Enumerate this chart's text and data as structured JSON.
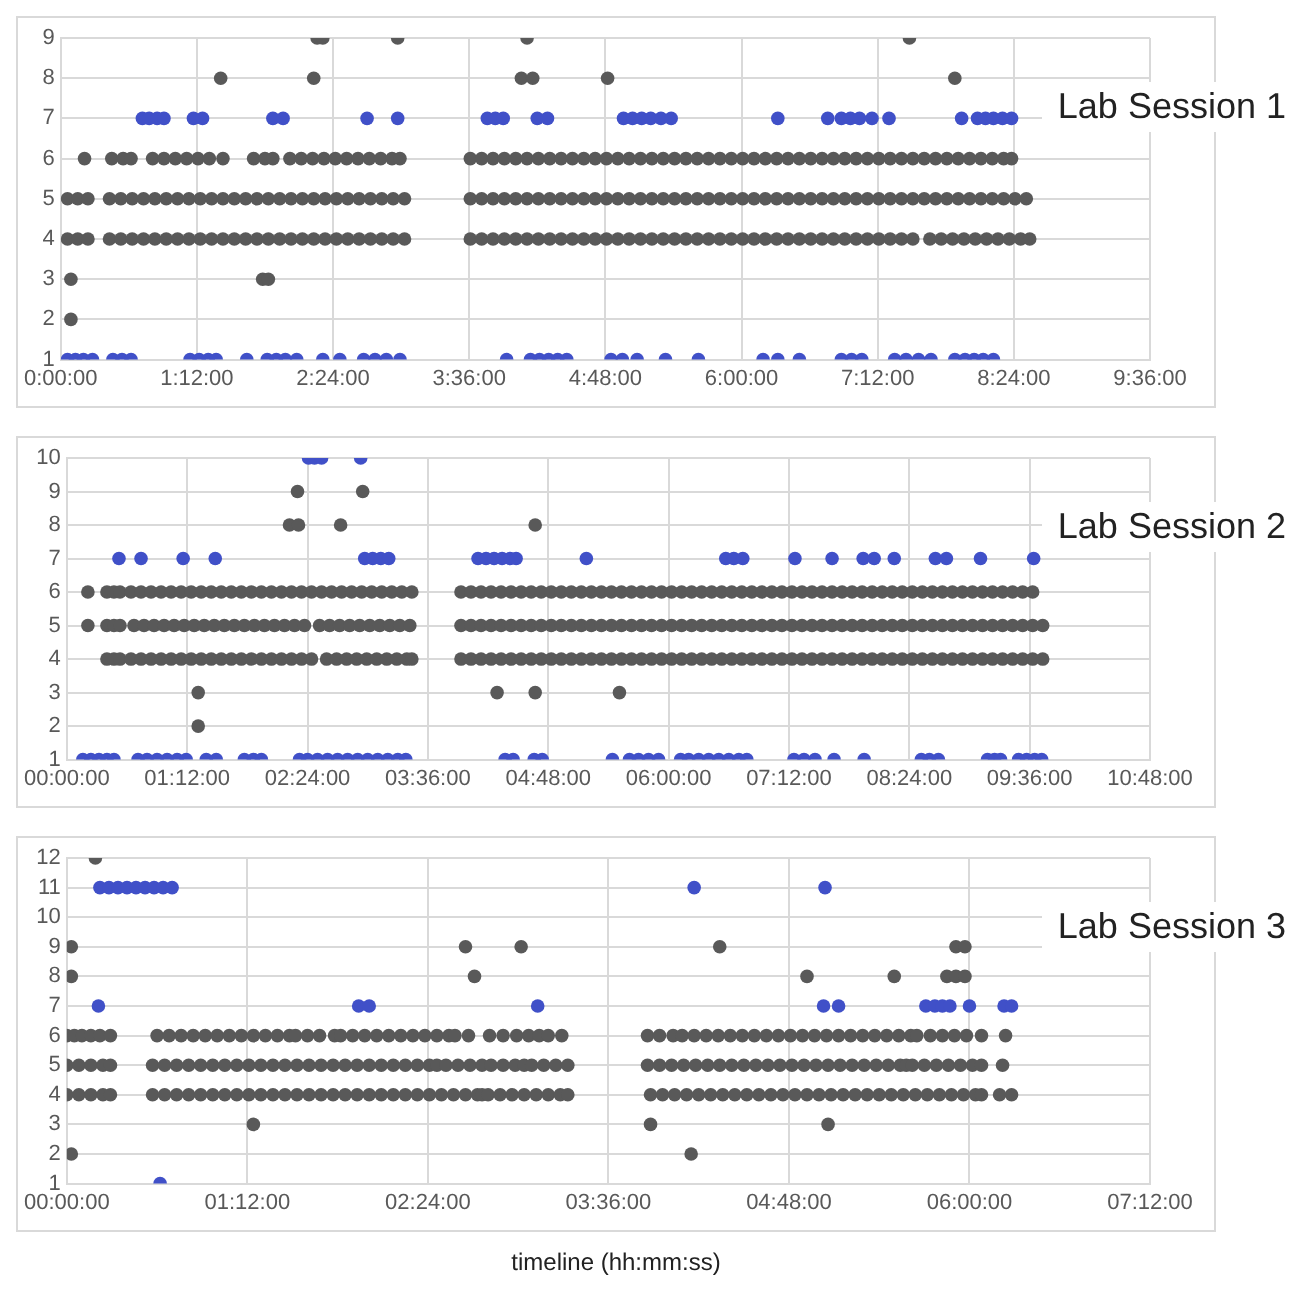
{
  "chart_data": [
    {
      "type": "scatter",
      "title": "Lab Session 1",
      "xlim": [
        0,
        9.6
      ],
      "ylim": [
        1,
        9
      ],
      "grid": true,
      "marker": "circle",
      "xticks": [
        {
          "value": 0,
          "label": "0:00:00"
        },
        {
          "value": 1.2,
          "label": "1:12:00"
        },
        {
          "value": 2.4,
          "label": "2:24:00"
        },
        {
          "value": 3.6,
          "label": "3:36:00"
        },
        {
          "value": 4.8,
          "label": "4:48:00"
        },
        {
          "value": 6,
          "label": "6:00:00"
        },
        {
          "value": 7.2,
          "label": "7:12:00"
        },
        {
          "value": 8.4,
          "label": "8:24:00"
        },
        {
          "value": 9.6,
          "label": "9:36:00"
        }
      ],
      "yticks": [
        1,
        2,
        3,
        4,
        5,
        6,
        7,
        8,
        9
      ],
      "series": [
        {
          "color": "#595959",
          "x": [
            0.06,
            0.15,
            0.24,
            0.43,
            0.53,
            0.63,
            0.73,
            0.83,
            0.93,
            1.03,
            1.13,
            1.23,
            1.33,
            1.43,
            1.53,
            1.63,
            1.73,
            1.83,
            1.93,
            2.03,
            2.13,
            2.23,
            2.33,
            2.43,
            2.53,
            2.63,
            2.73,
            2.83,
            2.93,
            3.03,
            3.61,
            3.71,
            3.81,
            3.91,
            4.01,
            4.11,
            4.21,
            4.31,
            4.41,
            4.51,
            4.61,
            4.71,
            4.81,
            4.91,
            5.01,
            5.11,
            5.21,
            5.31,
            5.41,
            5.51,
            5.61,
            5.71,
            5.81,
            5.91,
            6.01,
            6.11,
            6.21,
            6.31,
            6.41,
            6.51,
            6.61,
            6.71,
            6.81,
            6.91,
            7.01,
            7.11,
            7.21,
            7.31,
            7.41,
            7.51,
            7.66,
            7.76,
            7.86,
            7.96,
            8.06,
            8.16,
            8.26,
            8.36,
            8.46,
            8.54
          ],
          "values": [
            4,
            4,
            4,
            4,
            4,
            4,
            4,
            4,
            4,
            4,
            4,
            4,
            4,
            4,
            4,
            4,
            4,
            4,
            4,
            4,
            4,
            4,
            4,
            4,
            4,
            4,
            4,
            4,
            4,
            4,
            4,
            4,
            4,
            4,
            4,
            4,
            4,
            4,
            4,
            4,
            4,
            4,
            4,
            4,
            4,
            4,
            4,
            4,
            4,
            4,
            4,
            4,
            4,
            4,
            4,
            4,
            4,
            4,
            4,
            4,
            4,
            4,
            4,
            4,
            4,
            4,
            4,
            4,
            4,
            4,
            4,
            4,
            4,
            4,
            4,
            4,
            4,
            4,
            4,
            4
          ]
        },
        {
          "color": "#595959",
          "x": [
            0.06,
            0.15,
            0.24,
            0.43,
            0.53,
            0.63,
            0.73,
            0.83,
            0.93,
            1.03,
            1.13,
            1.23,
            1.33,
            1.43,
            1.53,
            1.63,
            1.73,
            1.83,
            1.93,
            2.03,
            2.13,
            2.23,
            2.33,
            2.43,
            2.53,
            2.63,
            2.73,
            2.83,
            2.93,
            3.03,
            3.61,
            3.71,
            3.81,
            3.91,
            4.01,
            4.11,
            4.21,
            4.31,
            4.41,
            4.51,
            4.61,
            4.71,
            4.81,
            4.91,
            5.01,
            5.11,
            5.21,
            5.31,
            5.41,
            5.51,
            5.61,
            5.71,
            5.81,
            5.91,
            6.01,
            6.11,
            6.21,
            6.31,
            6.41,
            6.51,
            6.61,
            6.71,
            6.81,
            6.91,
            7.01,
            7.11,
            7.21,
            7.31,
            7.41,
            7.51,
            7.61,
            7.71,
            7.81,
            7.91,
            8.01,
            8.11,
            8.21,
            8.31,
            8.41,
            8.51
          ],
          "values": [
            5,
            5,
            5,
            5,
            5,
            5,
            5,
            5,
            5,
            5,
            5,
            5,
            5,
            5,
            5,
            5,
            5,
            5,
            5,
            5,
            5,
            5,
            5,
            5,
            5,
            5,
            5,
            5,
            5,
            5,
            5,
            5,
            5,
            5,
            5,
            5,
            5,
            5,
            5,
            5,
            5,
            5,
            5,
            5,
            5,
            5,
            5,
            5,
            5,
            5,
            5,
            5,
            5,
            5,
            5,
            5,
            5,
            5,
            5,
            5,
            5,
            5,
            5,
            5,
            5,
            5,
            5,
            5,
            5,
            5,
            5,
            5,
            5,
            5,
            5,
            5,
            5,
            5,
            5,
            5
          ]
        },
        {
          "color": "#595959",
          "x": [
            0.21,
            0.45,
            0.55,
            0.62,
            0.81,
            0.91,
            1.01,
            1.11,
            1.21,
            1.31,
            1.43,
            1.7,
            1.8,
            1.87,
            2.02,
            2.12,
            2.22,
            2.32,
            2.42,
            2.52,
            2.62,
            2.72,
            2.82,
            2.92,
            2.99,
            3.61,
            3.71,
            3.81,
            3.91,
            4.01,
            4.11,
            4.21,
            4.31,
            4.41,
            4.51,
            4.61,
            4.71,
            4.81,
            4.91,
            5.01,
            5.11,
            5.21,
            5.31,
            5.41,
            5.51,
            5.61,
            5.71,
            5.81,
            5.91,
            6.01,
            6.11,
            6.21,
            6.31,
            6.41,
            6.51,
            6.61,
            6.71,
            6.81,
            6.91,
            7.01,
            7.11,
            7.21,
            7.31,
            7.41,
            7.51,
            7.61,
            7.71,
            7.81,
            7.91,
            8.01,
            8.11,
            8.21,
            8.31,
            8.38
          ],
          "values": [
            6,
            6,
            6,
            6,
            6,
            6,
            6,
            6,
            6,
            6,
            6,
            6,
            6,
            6,
            6,
            6,
            6,
            6,
            6,
            6,
            6,
            6,
            6,
            6,
            6,
            6,
            6,
            6,
            6,
            6,
            6,
            6,
            6,
            6,
            6,
            6,
            6,
            6,
            6,
            6,
            6,
            6,
            6,
            6,
            6,
            6,
            6,
            6,
            6,
            6,
            6,
            6,
            6,
            6,
            6,
            6,
            6,
            6,
            6,
            6,
            6,
            6,
            6,
            6,
            6,
            6,
            6,
            6,
            6,
            6,
            6,
            6,
            6,
            6
          ]
        },
        {
          "color": "#595959",
          "x": [
            0.09,
            0.09,
            1.78,
            1.83,
            1.41,
            2.23,
            4.06,
            4.16,
            4.82,
            7.88,
            2.26,
            2.31,
            2.97,
            4.11,
            7.48
          ],
          "values": [
            3,
            2,
            3,
            3,
            8,
            8,
            8,
            8,
            8,
            8,
            9,
            9,
            9,
            9,
            9
          ]
        },
        {
          "color": "#4050c8",
          "x": [
            0.72,
            0.78,
            0.85,
            0.91,
            1.17,
            1.25,
            1.87,
            1.96,
            2.7,
            2.97,
            3.76,
            3.83,
            3.9,
            4.2,
            4.29,
            4.96,
            5.04,
            5.12,
            5.2,
            5.29,
            5.38,
            6.32,
            6.76,
            6.88,
            6.96,
            7.04,
            7.15,
            7.3,
            7.94,
            8.08,
            8.15,
            8.22,
            8.3,
            8.38
          ],
          "values": [
            7,
            7,
            7,
            7,
            7,
            7,
            7,
            7,
            7,
            7,
            7,
            7,
            7,
            7,
            7,
            7,
            7,
            7,
            7,
            7,
            7,
            7,
            7,
            7,
            7,
            7,
            7,
            7,
            7,
            7,
            7,
            7,
            7,
            7
          ]
        },
        {
          "color": "#4050c8",
          "x": [
            0.06,
            0.13,
            0.2,
            0.28,
            0.46,
            0.54,
            0.62,
            1.14,
            1.22,
            1.3,
            1.37,
            1.64,
            1.82,
            1.9,
            1.98,
            2.08,
            2.31,
            2.46,
            2.67,
            2.77,
            2.87,
            2.99,
            3.93,
            4.14,
            4.22,
            4.3,
            4.38,
            4.46,
            4.85,
            4.95,
            5.08,
            5.33,
            5.62,
            6.19,
            6.32,
            6.51,
            6.88,
            6.97,
            7.06,
            7.35,
            7.45,
            7.56,
            7.67,
            7.88,
            7.97,
            8.05,
            8.13,
            8.22
          ],
          "values": [
            1,
            1,
            1,
            1,
            1,
            1,
            1,
            1,
            1,
            1,
            1,
            1,
            1,
            1,
            1,
            1,
            1,
            1,
            1,
            1,
            1,
            1,
            1,
            1,
            1,
            1,
            1,
            1,
            1,
            1,
            1,
            1,
            1,
            1,
            1,
            1,
            1,
            1,
            1,
            1,
            1,
            1,
            1,
            1,
            1,
            1,
            1,
            1
          ]
        }
      ]
    },
    {
      "type": "scatter",
      "title": "Lab Session 2",
      "xlim": [
        0,
        10.8
      ],
      "ylim": [
        1,
        10
      ],
      "grid": true,
      "marker": "circle",
      "xticks": [
        {
          "value": 0,
          "label": "00:00:00"
        },
        {
          "value": 1.2,
          "label": "01:12:00"
        },
        {
          "value": 2.4,
          "label": "02:24:00"
        },
        {
          "value": 3.6,
          "label": "03:36:00"
        },
        {
          "value": 4.8,
          "label": "04:48:00"
        },
        {
          "value": 6,
          "label": "06:00:00"
        },
        {
          "value": 7.2,
          "label": "07:12:00"
        },
        {
          "value": 8.4,
          "label": "08:24:00"
        },
        {
          "value": 9.6,
          "label": "09:36:00"
        },
        {
          "value": 10.8,
          "label": "10:48:00"
        }
      ],
      "yticks": [
        1,
        2,
        3,
        4,
        5,
        6,
        7,
        8,
        9,
        10
      ],
      "series": [
        {
          "color": "#595959",
          "x": [
            0.21,
            0.4,
            0.47,
            0.53,
            0.64,
            0.74,
            0.84,
            0.94,
            1.04,
            1.14,
            1.24,
            1.34,
            1.44,
            1.54,
            1.64,
            1.74,
            1.84,
            1.94,
            2.04,
            2.14,
            2.24,
            2.34,
            2.44,
            2.54,
            2.64,
            2.74,
            2.84,
            2.94,
            3.04,
            3.14,
            3.24,
            3.34,
            3.44,
            3.93,
            4.03,
            4.13,
            4.23,
            4.33,
            4.43,
            4.53,
            4.63,
            4.73,
            4.83,
            4.93,
            5.03,
            5.13,
            5.23,
            5.33,
            5.43,
            5.53,
            5.63,
            5.73,
            5.83,
            5.93,
            6.03,
            6.13,
            6.23,
            6.33,
            6.43,
            6.53,
            6.63,
            6.73,
            6.83,
            6.93,
            7.03,
            7.13,
            7.23,
            7.33,
            7.43,
            7.53,
            7.63,
            7.73,
            7.83,
            7.93,
            8.03,
            8.13,
            8.23,
            8.33,
            8.43,
            8.53,
            8.63,
            8.73,
            8.83,
            8.93,
            9.03,
            9.13,
            9.23,
            9.33,
            9.43,
            9.53,
            9.63
          ],
          "values": [
            6,
            6,
            6,
            6,
            6,
            6,
            6,
            6,
            6,
            6,
            6,
            6,
            6,
            6,
            6,
            6,
            6,
            6,
            6,
            6,
            6,
            6,
            6,
            6,
            6,
            6,
            6,
            6,
            6,
            6,
            6,
            6,
            6,
            6,
            6,
            6,
            6,
            6,
            6,
            6,
            6,
            6,
            6,
            6,
            6,
            6,
            6,
            6,
            6,
            6,
            6,
            6,
            6,
            6,
            6,
            6,
            6,
            6,
            6,
            6,
            6,
            6,
            6,
            6,
            6,
            6,
            6,
            6,
            6,
            6,
            6,
            6,
            6,
            6,
            6,
            6,
            6,
            6,
            6,
            6,
            6,
            6,
            6,
            6,
            6,
            6,
            6,
            6,
            6,
            6,
            6
          ]
        },
        {
          "color": "#595959",
          "x": [
            0.21,
            0.4,
            0.47,
            0.53,
            0.67,
            0.77,
            0.87,
            0.97,
            1.07,
            1.17,
            1.27,
            1.37,
            1.47,
            1.57,
            1.67,
            1.77,
            1.87,
            1.97,
            2.07,
            2.17,
            2.27,
            2.37,
            2.52,
            2.62,
            2.72,
            2.82,
            2.92,
            3.02,
            3.12,
            3.22,
            3.32,
            3.42,
            3.93,
            4.03,
            4.13,
            4.23,
            4.33,
            4.43,
            4.53,
            4.63,
            4.73,
            4.83,
            4.93,
            5.03,
            5.13,
            5.23,
            5.33,
            5.43,
            5.53,
            5.63,
            5.73,
            5.83,
            5.93,
            6.03,
            6.13,
            6.23,
            6.33,
            6.43,
            6.53,
            6.63,
            6.73,
            6.83,
            6.93,
            7.03,
            7.13,
            7.23,
            7.33,
            7.43,
            7.53,
            7.63,
            7.73,
            7.83,
            7.93,
            8.03,
            8.13,
            8.23,
            8.33,
            8.43,
            8.53,
            8.63,
            8.73,
            8.83,
            8.93,
            9.03,
            9.13,
            9.23,
            9.33,
            9.43,
            9.53,
            9.63,
            9.73
          ],
          "values": [
            5,
            5,
            5,
            5,
            5,
            5,
            5,
            5,
            5,
            5,
            5,
            5,
            5,
            5,
            5,
            5,
            5,
            5,
            5,
            5,
            5,
            5,
            5,
            5,
            5,
            5,
            5,
            5,
            5,
            5,
            5,
            5,
            5,
            5,
            5,
            5,
            5,
            5,
            5,
            5,
            5,
            5,
            5,
            5,
            5,
            5,
            5,
            5,
            5,
            5,
            5,
            5,
            5,
            5,
            5,
            5,
            5,
            5,
            5,
            5,
            5,
            5,
            5,
            5,
            5,
            5,
            5,
            5,
            5,
            5,
            5,
            5,
            5,
            5,
            5,
            5,
            5,
            5,
            5,
            5,
            5,
            5,
            5,
            5,
            5,
            5,
            5,
            5,
            5,
            5,
            5
          ]
        },
        {
          "color": "#595959",
          "x": [
            0.4,
            0.47,
            0.53,
            0.64,
            0.74,
            0.84,
            0.94,
            1.04,
            1.14,
            1.24,
            1.34,
            1.44,
            1.54,
            1.64,
            1.74,
            1.84,
            1.94,
            2.04,
            2.14,
            2.24,
            2.34,
            2.44,
            2.59,
            2.69,
            2.79,
            2.89,
            2.99,
            3.09,
            3.19,
            3.29,
            3.39,
            3.44,
            3.93,
            4.03,
            4.13,
            4.23,
            4.33,
            4.43,
            4.53,
            4.63,
            4.73,
            4.83,
            4.93,
            5.03,
            5.13,
            5.23,
            5.33,
            5.43,
            5.53,
            5.63,
            5.73,
            5.83,
            5.93,
            6.03,
            6.13,
            6.23,
            6.33,
            6.43,
            6.53,
            6.63,
            6.73,
            6.83,
            6.93,
            7.03,
            7.13,
            7.23,
            7.33,
            7.43,
            7.53,
            7.63,
            7.73,
            7.83,
            7.93,
            8.03,
            8.13,
            8.23,
            8.33,
            8.43,
            8.53,
            8.63,
            8.73,
            8.83,
            8.93,
            9.03,
            9.13,
            9.23,
            9.33,
            9.43,
            9.53,
            9.63,
            9.73
          ],
          "values": [
            4,
            4,
            4,
            4,
            4,
            4,
            4,
            4,
            4,
            4,
            4,
            4,
            4,
            4,
            4,
            4,
            4,
            4,
            4,
            4,
            4,
            4,
            4,
            4,
            4,
            4,
            4,
            4,
            4,
            4,
            4,
            4,
            4,
            4,
            4,
            4,
            4,
            4,
            4,
            4,
            4,
            4,
            4,
            4,
            4,
            4,
            4,
            4,
            4,
            4,
            4,
            4,
            4,
            4,
            4,
            4,
            4,
            4,
            4,
            4,
            4,
            4,
            4,
            4,
            4,
            4,
            4,
            4,
            4,
            4,
            4,
            4,
            4,
            4,
            4,
            4,
            4,
            4,
            4,
            4,
            4,
            4,
            4,
            4,
            4,
            4,
            4,
            4,
            4,
            4,
            4
          ]
        },
        {
          "color": "#595959",
          "x": [
            1.31,
            4.29,
            4.67,
            5.51,
            1.31,
            2.22,
            2.31,
            2.73,
            4.67,
            2.3,
            2.95
          ],
          "values": [
            3,
            3,
            3,
            3,
            2,
            8,
            8,
            8,
            8,
            9,
            9
          ]
        },
        {
          "color": "#4050c8",
          "x": [
            2.41,
            2.47,
            2.54,
            2.93,
            0.52,
            0.74,
            1.16,
            1.48,
            2.97,
            3.05,
            3.13,
            3.21,
            4.1,
            4.18,
            4.26,
            4.34,
            4.42,
            4.48,
            5.18,
            6.57,
            6.65,
            6.74,
            7.26,
            7.63,
            7.94,
            8.05,
            8.25,
            8.66,
            8.77,
            9.11,
            9.64
          ],
          "values": [
            10,
            10,
            10,
            10,
            7,
            7,
            7,
            7,
            7,
            7,
            7,
            7,
            7,
            7,
            7,
            7,
            7,
            7,
            7,
            7,
            7,
            7,
            7,
            7,
            7,
            7,
            7,
            7,
            7,
            7,
            7
          ]
        },
        {
          "color": "#4050c8",
          "x": [
            0.16,
            0.24,
            0.32,
            0.4,
            0.47,
            0.71,
            0.8,
            0.9,
            1.0,
            1.1,
            1.19,
            1.39,
            1.49,
            1.77,
            1.86,
            1.94,
            2.32,
            2.4,
            2.5,
            2.6,
            2.7,
            2.8,
            2.9,
            3.0,
            3.1,
            3.2,
            3.3,
            3.38,
            4.37,
            4.45,
            4.66,
            4.74,
            5.44,
            5.61,
            5.7,
            5.8,
            5.9,
            6.12,
            6.2,
            6.3,
            6.4,
            6.5,
            6.6,
            6.7,
            6.78,
            7.25,
            7.35,
            7.46,
            7.65,
            7.95,
            8.52,
            8.6,
            8.69,
            9.18,
            9.25,
            9.31,
            9.49,
            9.57,
            9.65,
            9.72
          ],
          "values": [
            1,
            1,
            1,
            1,
            1,
            1,
            1,
            1,
            1,
            1,
            1,
            1,
            1,
            1,
            1,
            1,
            1,
            1,
            1,
            1,
            1,
            1,
            1,
            1,
            1,
            1,
            1,
            1,
            1,
            1,
            1,
            1,
            1,
            1,
            1,
            1,
            1,
            1,
            1,
            1,
            1,
            1,
            1,
            1,
            1,
            1,
            1,
            1,
            1,
            1,
            1,
            1,
            1,
            1,
            1,
            1,
            1,
            1,
            1,
            1
          ]
        }
      ]
    },
    {
      "type": "scatter",
      "title": "Lab Session 3",
      "xlabel": "timeline (hh:mm:ss)",
      "xlim": [
        0,
        7.2
      ],
      "ylim": [
        1,
        12
      ],
      "grid": true,
      "marker": "circle",
      "xticks": [
        {
          "value": 0,
          "label": "00:00:00"
        },
        {
          "value": 1.2,
          "label": "01:12:00"
        },
        {
          "value": 2.4,
          "label": "02:24:00"
        },
        {
          "value": 3.6,
          "label": "03:36:00"
        },
        {
          "value": 4.8,
          "label": "04:48:00"
        },
        {
          "value": 6,
          "label": "06:00:00"
        },
        {
          "value": 7.2,
          "label": "07:12:00"
        }
      ],
      "yticks": [
        1,
        2,
        3,
        4,
        5,
        6,
        7,
        8,
        9,
        10,
        11,
        12
      ],
      "series": [
        {
          "color": "#595959",
          "x": [
            0,
            0.05,
            0.1,
            0.16,
            0.22,
            0.29,
            0.6,
            0.68,
            0.76,
            0.84,
            0.92,
            1.0,
            1.08,
            1.16,
            1.24,
            1.32,
            1.4,
            1.48,
            1.52,
            1.6,
            1.68,
            1.78,
            1.82,
            1.9,
            1.98,
            2.06,
            2.14,
            2.22,
            2.3,
            2.38,
            2.46,
            2.54,
            2.58,
            2.67,
            2.81,
            2.9,
            2.99,
            3.07,
            3.14,
            3.2,
            3.29,
            3.86,
            3.94,
            4.03,
            4.09,
            4.17,
            4.25,
            4.33,
            4.41,
            4.49,
            4.57,
            4.65,
            4.73,
            4.81,
            4.89,
            4.97,
            5.05,
            5.13,
            5.21,
            5.29,
            5.37,
            5.45,
            5.53,
            5.61,
            5.65,
            5.74,
            5.82,
            5.9,
            5.98,
            6.08,
            6.24
          ],
          "values": [
            6,
            6,
            6,
            6,
            6,
            6,
            6,
            6,
            6,
            6,
            6,
            6,
            6,
            6,
            6,
            6,
            6,
            6,
            6,
            6,
            6,
            6,
            6,
            6,
            6,
            6,
            6,
            6,
            6,
            6,
            6,
            6,
            6,
            6,
            6,
            6,
            6,
            6,
            6,
            6,
            6,
            6,
            6,
            6,
            6,
            6,
            6,
            6,
            6,
            6,
            6,
            6,
            6,
            6,
            6,
            6,
            6,
            6,
            6,
            6,
            6,
            6,
            6,
            6,
            6,
            6,
            6,
            6,
            6,
            6,
            6
          ]
        },
        {
          "color": "#595959",
          "x": [
            0,
            0.08,
            0.16,
            0.24,
            0.29,
            0.57,
            0.65,
            0.73,
            0.81,
            0.89,
            0.97,
            1.05,
            1.13,
            1.21,
            1.29,
            1.37,
            1.45,
            1.53,
            1.61,
            1.69,
            1.77,
            1.85,
            1.93,
            2.01,
            2.09,
            2.17,
            2.25,
            2.33,
            2.41,
            2.46,
            2.52,
            2.6,
            2.68,
            2.76,
            2.82,
            2.9,
            2.98,
            3.04,
            3.09,
            3.17,
            3.25,
            3.33,
            3.86,
            3.94,
            4.02,
            4.1,
            4.18,
            4.26,
            4.34,
            4.42,
            4.5,
            4.58,
            4.66,
            4.74,
            4.82,
            4.9,
            4.98,
            5.06,
            5.14,
            5.22,
            5.3,
            5.38,
            5.46,
            5.54,
            5.58,
            5.62,
            5.7,
            5.78,
            5.86,
            5.94,
            6.02,
            6.08,
            6.22
          ],
          "values": [
            5,
            5,
            5,
            5,
            5,
            5,
            5,
            5,
            5,
            5,
            5,
            5,
            5,
            5,
            5,
            5,
            5,
            5,
            5,
            5,
            5,
            5,
            5,
            5,
            5,
            5,
            5,
            5,
            5,
            5,
            5,
            5,
            5,
            5,
            5,
            5,
            5,
            5,
            5,
            5,
            5,
            5,
            5,
            5,
            5,
            5,
            5,
            5,
            5,
            5,
            5,
            5,
            5,
            5,
            5,
            5,
            5,
            5,
            5,
            5,
            5,
            5,
            5,
            5,
            5,
            5,
            5,
            5,
            5,
            5,
            5,
            5,
            5
          ]
        },
        {
          "color": "#595959",
          "x": [
            0,
            0.08,
            0.16,
            0.24,
            0.29,
            0.57,
            0.65,
            0.73,
            0.81,
            0.89,
            0.97,
            1.05,
            1.13,
            1.21,
            1.29,
            1.37,
            1.45,
            1.53,
            1.61,
            1.69,
            1.77,
            1.85,
            1.93,
            2.01,
            2.09,
            2.17,
            2.25,
            2.33,
            2.41,
            2.49,
            2.57,
            2.65,
            2.73,
            2.76,
            2.8,
            2.88,
            2.96,
            3.04,
            3.12,
            3.2,
            3.28,
            3.33,
            3.88,
            3.96,
            4.04,
            4.12,
            4.2,
            4.28,
            4.36,
            4.44,
            4.52,
            4.6,
            4.68,
            4.76,
            4.84,
            4.92,
            5.0,
            5.08,
            5.16,
            5.24,
            5.32,
            5.4,
            5.48,
            5.56,
            5.64,
            5.72,
            5.8,
            5.88,
            5.96,
            6.04,
            6.08,
            6.2,
            6.28
          ],
          "values": [
            4,
            4,
            4,
            4,
            4,
            4,
            4,
            4,
            4,
            4,
            4,
            4,
            4,
            4,
            4,
            4,
            4,
            4,
            4,
            4,
            4,
            4,
            4,
            4,
            4,
            4,
            4,
            4,
            4,
            4,
            4,
            4,
            4,
            4,
            4,
            4,
            4,
            4,
            4,
            4,
            4,
            4,
            4,
            4,
            4,
            4,
            4,
            4,
            4,
            4,
            4,
            4,
            4,
            4,
            4,
            4,
            4,
            4,
            4,
            4,
            4,
            4,
            4,
            4,
            4,
            4,
            4,
            4,
            4,
            4,
            4,
            4,
            4
          ]
        },
        {
          "color": "#595959",
          "x": [
            0.19,
            0.03,
            2.65,
            3.02,
            4.34,
            5.91,
            5.97,
            0.03,
            2.71,
            4.92,
            5.5,
            5.85,
            5.91,
            5.97,
            1.24,
            3.88,
            5.06,
            0.03,
            4.15
          ],
          "values": [
            12,
            9,
            9,
            9,
            9,
            9,
            9,
            8,
            8,
            8,
            8,
            8,
            8,
            8,
            3,
            3,
            3,
            2,
            2
          ]
        },
        {
          "color": "#4050c8",
          "x": [
            0.22,
            0.28,
            0.34,
            0.4,
            0.46,
            0.52,
            0.58,
            0.64,
            0.7,
            4.17,
            5.04,
            0.21,
            1.94,
            2.01,
            3.13,
            5.03,
            5.13,
            5.71,
            5.77,
            5.82,
            5.87,
            6.0,
            6.23,
            6.28,
            0.62
          ],
          "values": [
            11,
            11,
            11,
            11,
            11,
            11,
            11,
            11,
            11,
            11,
            11,
            7,
            7,
            7,
            7,
            7,
            7,
            7,
            7,
            7,
            7,
            7,
            7,
            7,
            1
          ]
        }
      ]
    }
  ]
}
